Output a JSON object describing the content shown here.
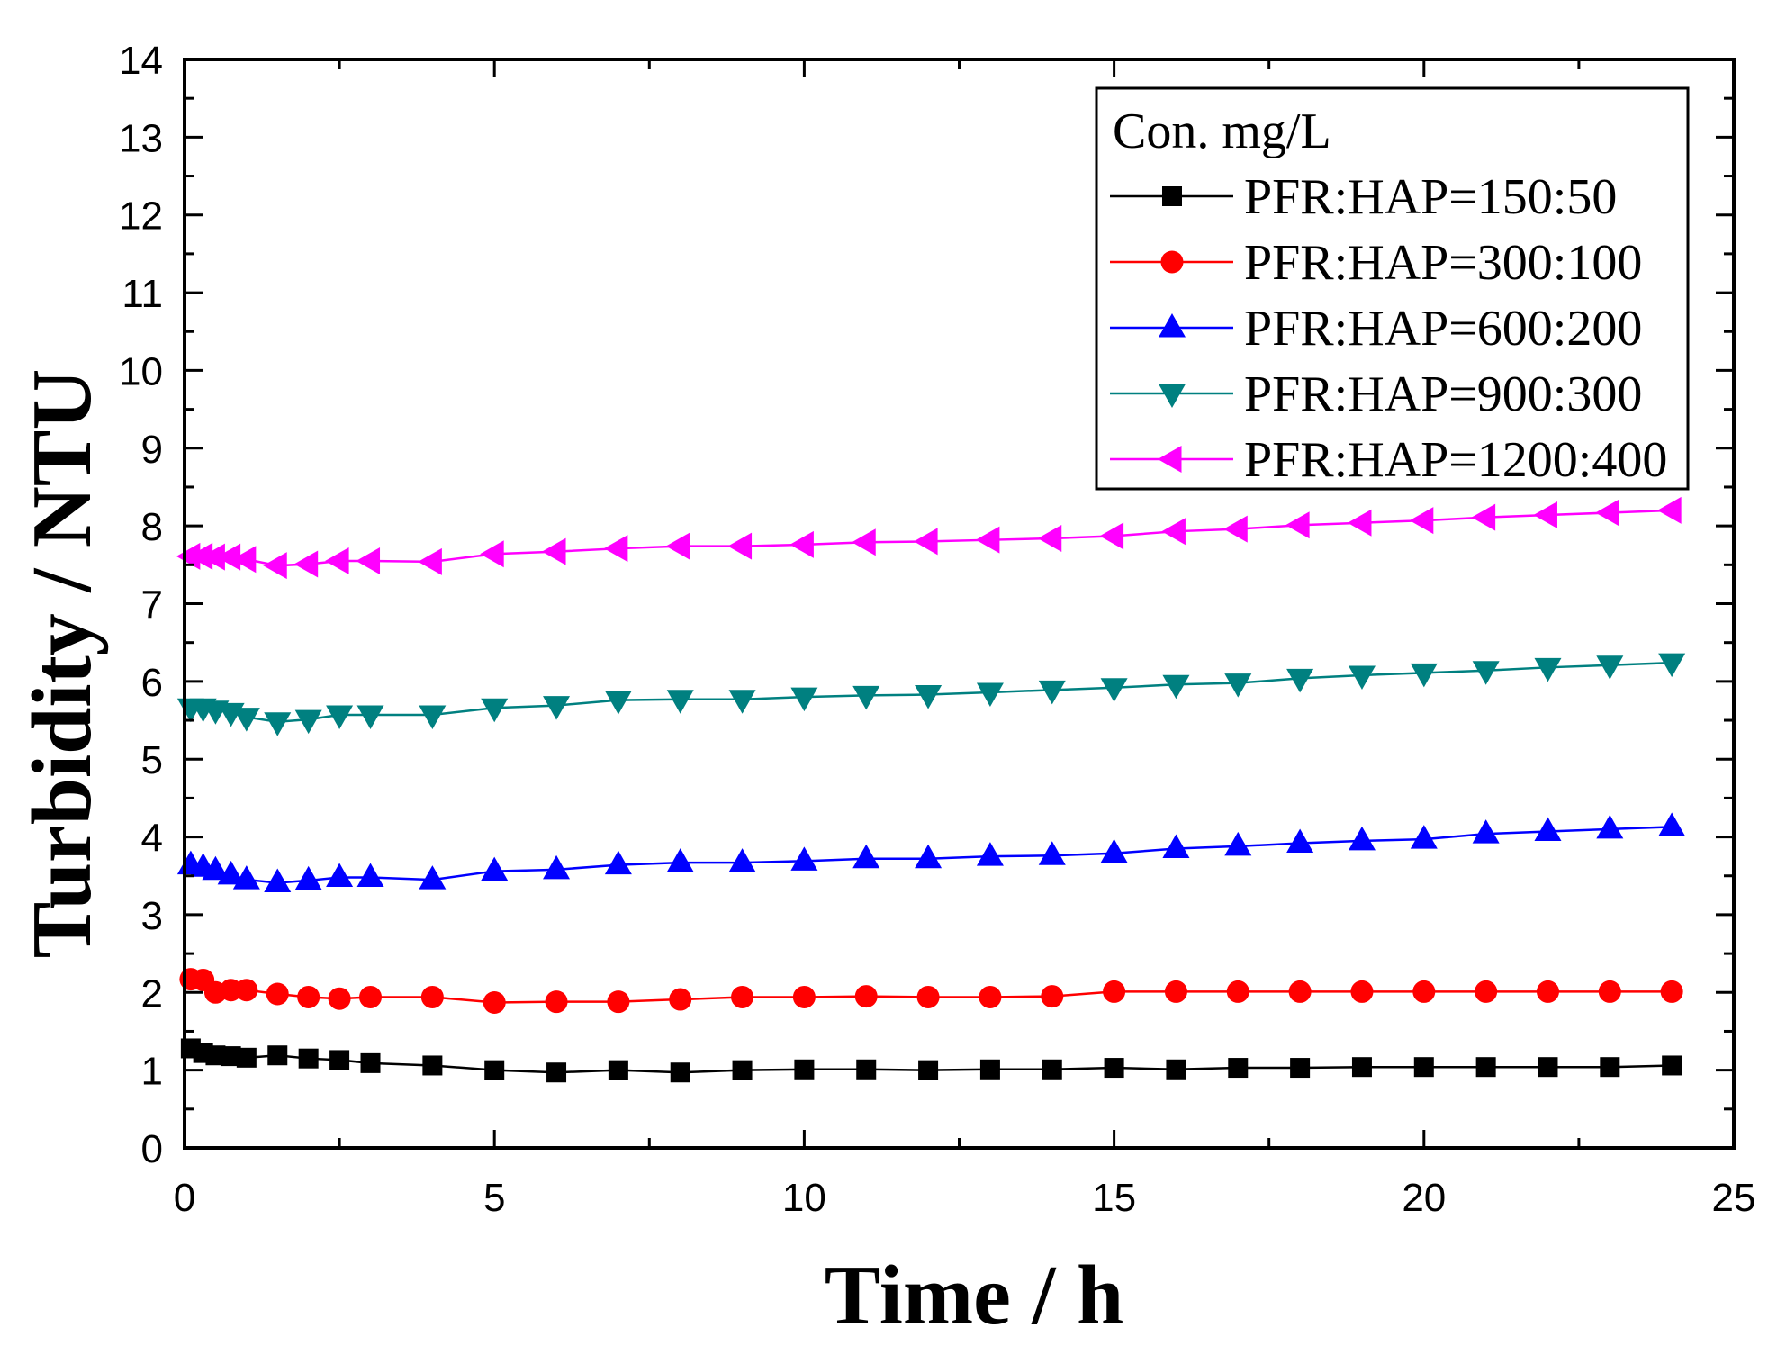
{
  "chart_data": {
    "type": "line",
    "title": "",
    "xlabel": "Time / h",
    "ylabel": "Turbidity / NTU",
    "xlim": [
      0,
      25
    ],
    "ylim": [
      0,
      14
    ],
    "xticks": [
      0,
      5,
      10,
      15,
      20,
      25
    ],
    "yticks": [
      0,
      1,
      2,
      3,
      4,
      5,
      6,
      7,
      8,
      9,
      10,
      11,
      12,
      13,
      14
    ],
    "grid": false,
    "legend": {
      "title": "Con. mg/L",
      "position": "top-right"
    },
    "x": [
      0.1,
      0.3,
      0.5,
      0.75,
      1,
      1.5,
      2,
      2.5,
      3,
      4,
      5,
      6,
      7,
      8,
      9,
      10,
      11,
      12,
      13,
      14,
      15,
      16,
      17,
      18,
      19,
      20,
      21,
      22,
      23,
      24
    ],
    "series": [
      {
        "name": "PFR:HAP=150:50",
        "color": "#000000",
        "marker": "square",
        "values": [
          1.28,
          1.22,
          1.19,
          1.18,
          1.16,
          1.19,
          1.15,
          1.13,
          1.09,
          1.06,
          1.0,
          0.97,
          1.0,
          0.97,
          1.0,
          1.01,
          1.01,
          1.0,
          1.01,
          1.01,
          1.03,
          1.01,
          1.03,
          1.03,
          1.04,
          1.04,
          1.04,
          1.04,
          1.04,
          1.06
        ]
      },
      {
        "name": "PFR:HAP=300:100",
        "color": "#FF0000",
        "marker": "circle",
        "values": [
          2.17,
          2.16,
          2.0,
          2.03,
          2.03,
          1.98,
          1.94,
          1.92,
          1.94,
          1.94,
          1.87,
          1.88,
          1.88,
          1.91,
          1.94,
          1.94,
          1.95,
          1.94,
          1.94,
          1.95,
          2.01,
          2.01,
          2.01,
          2.01,
          2.01,
          2.01,
          2.01,
          2.01,
          2.01,
          2.01
        ]
      },
      {
        "name": "PFR:HAP=600:200",
        "color": "#0000FF",
        "marker": "triangle-up",
        "values": [
          3.64,
          3.61,
          3.57,
          3.51,
          3.45,
          3.41,
          3.44,
          3.48,
          3.48,
          3.45,
          3.56,
          3.58,
          3.64,
          3.67,
          3.67,
          3.69,
          3.72,
          3.72,
          3.75,
          3.76,
          3.79,
          3.85,
          3.88,
          3.92,
          3.95,
          3.97,
          4.04,
          4.07,
          4.1,
          4.13
        ]
      },
      {
        "name": "PFR:HAP=900:300",
        "color": "#008080",
        "marker": "triangle-down",
        "values": [
          5.66,
          5.66,
          5.63,
          5.6,
          5.54,
          5.48,
          5.51,
          5.57,
          5.57,
          5.57,
          5.66,
          5.69,
          5.76,
          5.77,
          5.77,
          5.8,
          5.82,
          5.83,
          5.86,
          5.89,
          5.92,
          5.96,
          5.98,
          6.04,
          6.08,
          6.11,
          6.14,
          6.18,
          6.21,
          6.24
        ]
      },
      {
        "name": "PFR:HAP=1200:400",
        "color": "#FF00FF",
        "marker": "triangle-left",
        "values": [
          7.61,
          7.61,
          7.6,
          7.6,
          7.57,
          7.49,
          7.51,
          7.55,
          7.55,
          7.54,
          7.64,
          7.67,
          7.71,
          7.74,
          7.74,
          7.76,
          7.79,
          7.8,
          7.82,
          7.84,
          7.87,
          7.93,
          7.96,
          8.01,
          8.04,
          8.07,
          8.11,
          8.14,
          8.17,
          8.2
        ]
      }
    ]
  }
}
